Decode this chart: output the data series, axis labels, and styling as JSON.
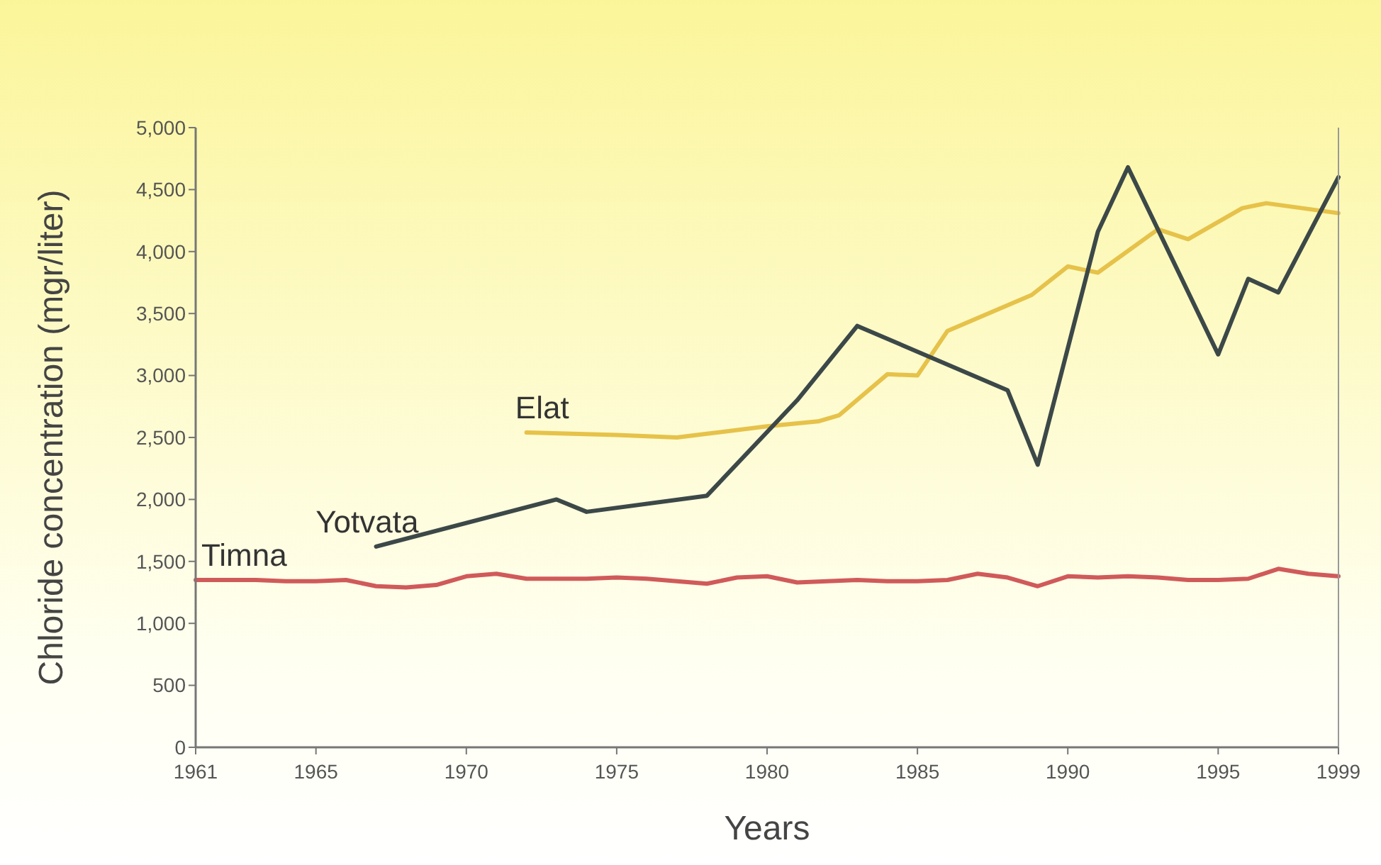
{
  "chart_data": {
    "type": "line",
    "xlabel": "Years",
    "ylabel": "Chloride concentration (mgr/liter)",
    "xlim": [
      1961,
      1999
    ],
    "xticks": [
      1961,
      1965,
      1970,
      1975,
      1980,
      1985,
      1990,
      1995,
      1999
    ],
    "ylim": [
      0,
      5000
    ],
    "yticks": [
      0,
      500,
      {
        "value": 1000,
        "label": "1,000"
      },
      {
        "value": 1500,
        "label": "1,500"
      },
      {
        "value": 2000,
        "label": "2,000"
      },
      {
        "value": 2500,
        "label": "2,500"
      },
      {
        "value": 3000,
        "label": "3,000"
      },
      {
        "value": 3500,
        "label": "3,500"
      },
      {
        "value": 4000,
        "label": "4,000"
      },
      {
        "value": 4500,
        "label": "4,500"
      },
      {
        "value": 5000,
        "label": "5,000"
      }
    ],
    "grid": false,
    "marker": "none",
    "line_style": "solid",
    "series": [
      {
        "name": "Elat",
        "color": "#e6c24a",
        "x": [
          1972,
          1975,
          1977,
          1978,
          1980,
          1981.7,
          1982.4,
          1984,
          1985,
          1986,
          1988.8,
          1990,
          1991,
          1993,
          1994,
          1995.8,
          1996.6,
          1999
        ],
        "values": [
          2540,
          2520,
          2500,
          2530,
          2590,
          2630,
          2680,
          3010,
          3000,
          3360,
          3650,
          3880,
          3830,
          4180,
          4100,
          4350,
          4390,
          4310
        ]
      },
      {
        "name": "Yotvata",
        "color": "#3c4848",
        "x": [
          1967,
          1973,
          1974,
          1978,
          1981,
          1983,
          1988,
          1989,
          1991,
          1992,
          1995,
          1996,
          1997,
          1999
        ],
        "values": [
          1620,
          2000,
          1900,
          2030,
          2800,
          3400,
          2880,
          2280,
          4160,
          4680,
          3170,
          3780,
          3670,
          4600
        ]
      },
      {
        "name": "Timna",
        "color": "#d05a5a",
        "x": [
          1961,
          1962,
          1963,
          1964,
          1965,
          1966,
          1967,
          1968,
          1969,
          1970,
          1971,
          1972,
          1973,
          1974,
          1975,
          1976,
          1977,
          1978,
          1979,
          1980,
          1981,
          1982,
          1983,
          1984,
          1985,
          1986,
          1987,
          1988,
          1989,
          1990,
          1991,
          1992,
          1993,
          1994,
          1995,
          1996,
          1997,
          1998,
          1999
        ],
        "values": [
          1350,
          1350,
          1350,
          1340,
          1340,
          1350,
          1300,
          1290,
          1310,
          1380,
          1400,
          1360,
          1360,
          1360,
          1370,
          1360,
          1340,
          1320,
          1370,
          1380,
          1330,
          1340,
          1350,
          1340,
          1340,
          1350,
          1400,
          1370,
          1300,
          1380,
          1370,
          1380,
          1370,
          1350,
          1350,
          1360,
          1440,
          1400,
          1380
        ]
      }
    ]
  }
}
